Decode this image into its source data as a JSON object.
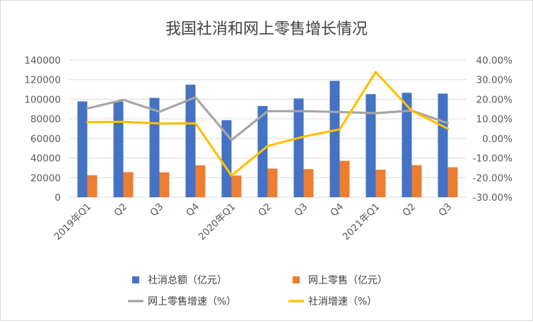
{
  "chart_data": {
    "type": "bar",
    "title": "我国社消和网上零售增长情况",
    "categories": [
      "2019年Q1",
      "Q2",
      "Q3",
      "Q4",
      "2020年Q1",
      "Q2",
      "Q3",
      "Q4",
      "2021年Q1",
      "Q2",
      "Q3"
    ],
    "series": [
      {
        "name": "社消总额（亿元）",
        "type": "bar",
        "axis": "left",
        "color": "#4472C4",
        "values": [
          97800,
          97700,
          101400,
          114900,
          78600,
          93100,
          100800,
          118800,
          105200,
          106600,
          105800
        ]
      },
      {
        "name": "网上零售（亿元）",
        "type": "bar",
        "axis": "left",
        "color": "#ED7D31",
        "values": [
          22400,
          25600,
          25400,
          32600,
          22100,
          29200,
          28700,
          37100,
          28100,
          32700,
          30600
        ]
      },
      {
        "name": "网上零售增速（%）",
        "type": "line",
        "axis": "right",
        "color": "#A5A5A5",
        "values": [
          15.3,
          19.7,
          13.6,
          21.0,
          -0.8,
          13.9,
          13.9,
          13.5,
          12.9,
          14.2,
          7.8
        ]
      },
      {
        "name": "社消增速（%）",
        "type": "line",
        "axis": "right",
        "color": "#FFC000",
        "values": [
          8.3,
          8.5,
          7.6,
          7.7,
          -19.0,
          -3.9,
          0.9,
          4.6,
          33.9,
          14.1,
          5.0
        ]
      }
    ],
    "y_left": {
      "min": 0,
      "max": 140000,
      "step": 20000,
      "ticks": [
        "0",
        "20000",
        "40000",
        "60000",
        "80000",
        "100000",
        "120000",
        "140000"
      ]
    },
    "y_right": {
      "min": -30,
      "max": 40,
      "step": 10,
      "ticks": [
        "-30.00%",
        "-20.00%",
        "-10.00%",
        "0.00%",
        "10.00%",
        "20.00%",
        "30.00%",
        "40.00%"
      ]
    },
    "grid": true,
    "legend_position": "bottom"
  }
}
